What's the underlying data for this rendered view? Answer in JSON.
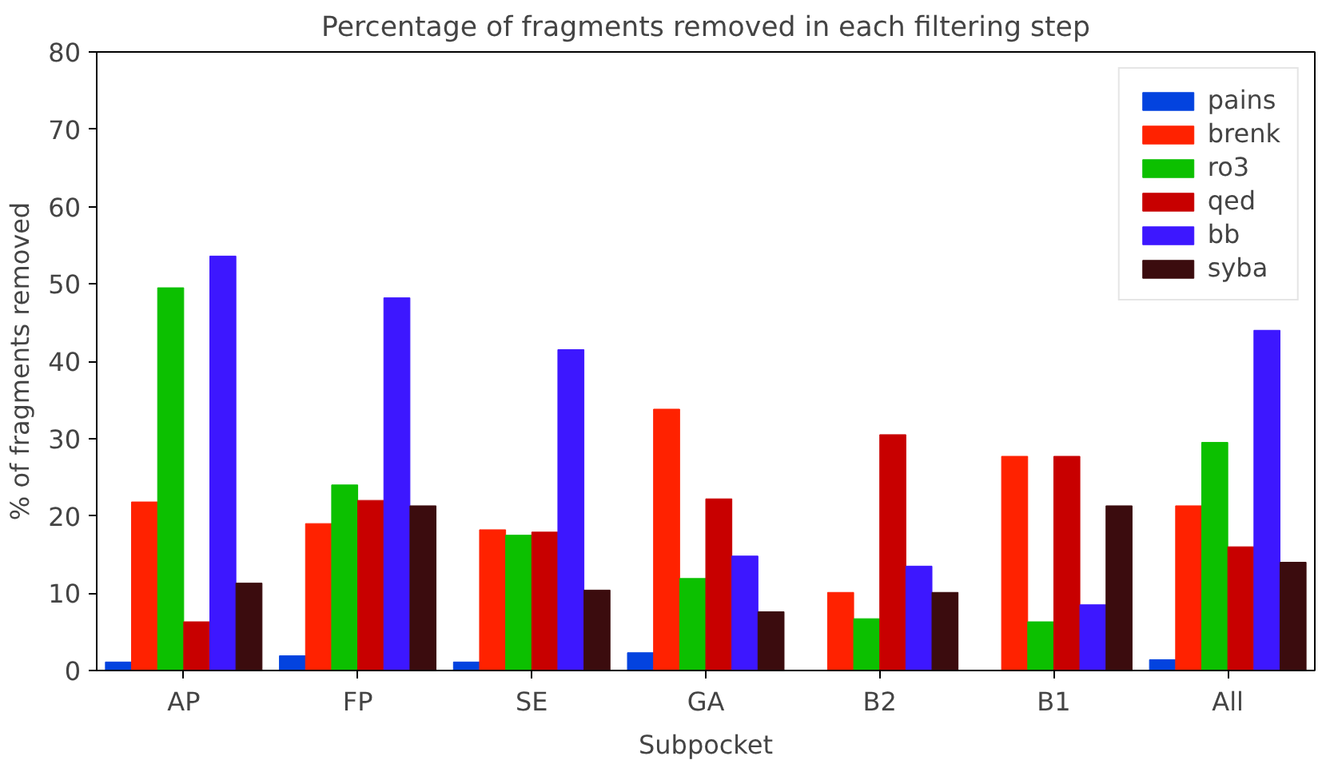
{
  "chart_data": {
    "type": "bar",
    "title": "Percentage of fragments removed in each filtering step",
    "xlabel": "Subpocket",
    "ylabel": "% of fragments removed",
    "categories": [
      "AP",
      "FP",
      "SE",
      "GA",
      "B2",
      "B1",
      "All"
    ],
    "series": [
      {
        "name": "pains",
        "color": "#0343df",
        "values": [
          1.1,
          1.9,
          1.1,
          2.3,
          0,
          0,
          1.4
        ]
      },
      {
        "name": "brenk",
        "color": "#ff2200",
        "values": [
          21.8,
          19.0,
          18.2,
          33.8,
          10.1,
          27.7,
          21.3
        ]
      },
      {
        "name": "ro3",
        "color": "#0cc000",
        "values": [
          49.5,
          24.0,
          17.5,
          11.9,
          6.7,
          6.3,
          29.5
        ]
      },
      {
        "name": "qed",
        "color": "#c80000",
        "values": [
          6.3,
          22.0,
          17.9,
          22.2,
          30.5,
          27.7,
          16.0
        ]
      },
      {
        "name": "bb",
        "color": "#3d17ff",
        "values": [
          53.6,
          48.2,
          41.5,
          14.8,
          13.5,
          8.5,
          44.0
        ]
      },
      {
        "name": "syba",
        "color": "#3b0c0e",
        "values": [
          11.3,
          21.3,
          10.4,
          7.6,
          10.1,
          21.3,
          14.0
        ]
      }
    ],
    "ylim": [
      0,
      80
    ],
    "yticks": [
      0,
      10,
      20,
      30,
      40,
      50,
      60,
      70,
      80
    ],
    "grid": false,
    "legend": "top right"
  }
}
